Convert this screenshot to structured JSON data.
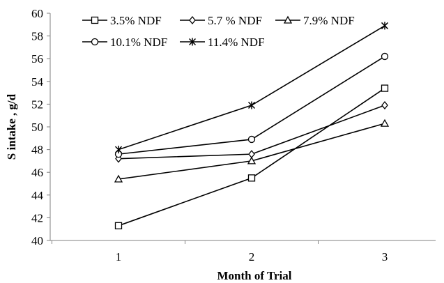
{
  "chart_data": {
    "type": "line",
    "xlabel": "Month of Trial",
    "ylabel": "S intake , g/d",
    "categories": [
      "1",
      "2",
      "3"
    ],
    "ylim": [
      40,
      60
    ],
    "yticks": [
      40,
      42,
      44,
      46,
      48,
      50,
      52,
      54,
      56,
      58,
      60
    ],
    "grid": false,
    "legend_position": "top-left",
    "series": [
      {
        "name": "3.5% NDF",
        "marker": "square",
        "values": [
          41.3,
          45.5,
          53.4
        ]
      },
      {
        "name": "5.7 % NDF",
        "marker": "diamond",
        "values": [
          47.2,
          47.6,
          51.9
        ]
      },
      {
        "name": "7.9% NDF",
        "marker": "triangle",
        "values": [
          45.4,
          47.0,
          50.3
        ]
      },
      {
        "name": "10.1% NDF",
        "marker": "circle",
        "values": [
          47.6,
          48.9,
          56.2
        ]
      },
      {
        "name": "11.4% NDF",
        "marker": "asterisk",
        "values": [
          48.0,
          51.9,
          58.9
        ]
      }
    ],
    "colors": {
      "line": "#000000",
      "axis": "#808080"
    }
  }
}
